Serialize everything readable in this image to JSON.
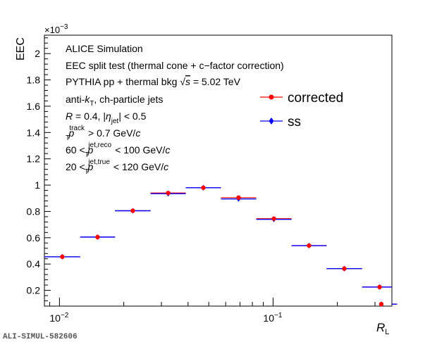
{
  "chart_data": {
    "type": "scatter",
    "x_scale": "log",
    "xlim": [
      0.0085,
      0.36
    ],
    "ylim": [
      0.08,
      0.00214
    ],
    "y_multiplier_label": "×10",
    "y_multiplier_exp": "−3",
    "ylim_scaled": [
      0.08,
      2.14
    ],
    "ylabel": "EEC",
    "xlabel_main": "R",
    "xlabel_sub": "L",
    "y_ticks": [
      0.2,
      0.4,
      0.6,
      0.8,
      1,
      1.2,
      1.4,
      1.6,
      1.8,
      2
    ],
    "y_tick_labels": [
      "0.2",
      "0.4",
      "0.6",
      "0.8",
      "1",
      "1.2",
      "1.4",
      "1.6",
      "1.8",
      "2"
    ],
    "x_major_ticks": [
      {
        "value": 0.01,
        "base": "10",
        "exp": "−2"
      },
      {
        "value": 0.1,
        "base": "10",
        "exp": "−1"
      }
    ],
    "x_minor_ticks": [
      0.009,
      0.02,
      0.03,
      0.04,
      0.05,
      0.06,
      0.07,
      0.08,
      0.09,
      0.2,
      0.3
    ],
    "bin_edges": [
      0.0085,
      0.0125,
      0.0182,
      0.0267,
      0.039,
      0.057,
      0.0834,
      0.122,
      0.178,
      0.261,
      0.381,
      0.557
    ],
    "series": [
      {
        "name": "corrected",
        "color": "#ff0000",
        "marker": "circle",
        "values": [
          0.455,
          0.605,
          0.805,
          0.94,
          0.98,
          0.905,
          0.745,
          0.54,
          0.365,
          0.225,
          0.095
        ]
      },
      {
        "name": "ss",
        "color": "#0000ff",
        "marker": "diamond",
        "values": [
          0.455,
          0.605,
          0.805,
          0.935,
          0.98,
          0.895,
          0.74,
          0.54,
          0.365,
          0.225,
          0.095
        ]
      }
    ],
    "legend_position": "top-right",
    "annotations": {
      "line1": "ALICE Simulation",
      "line2": "EEC split test (thermal cone + c−factor correction)",
      "line3_pre": "PYTHIA pp + thermal bkg ",
      "line3_sqrt": "√",
      "line3_s": "s",
      "line3_post": " = 5.02 TeV",
      "line4_pre": "anti-",
      "line4_k": "k",
      "line4_T": "T",
      "line4_post": ", ch-particle jets",
      "line5_R": "R",
      "line5_mid": " = 0.4, |",
      "line5_eta": "η",
      "line5_jet": "jet",
      "line5_post": "| < 0.5",
      "line6_p": "p",
      "line6_T": "T",
      "line6_sup": "track",
      "line6_post": " > 0.7 GeV/",
      "line6_c": "c",
      "line7_pre": "60 < ",
      "line7_p": "p",
      "line7_T": "T",
      "line7_sup": "jet,reco",
      "line7_post": " < 100 GeV/",
      "line7_c": "c",
      "line8_pre": "20 < ",
      "line8_p": "p",
      "line8_T": "T",
      "line8_sup": "jet,true",
      "line8_post": " < 120 GeV/",
      "line8_c": "c"
    },
    "watermark": "ALI-SIMUL-582606"
  }
}
